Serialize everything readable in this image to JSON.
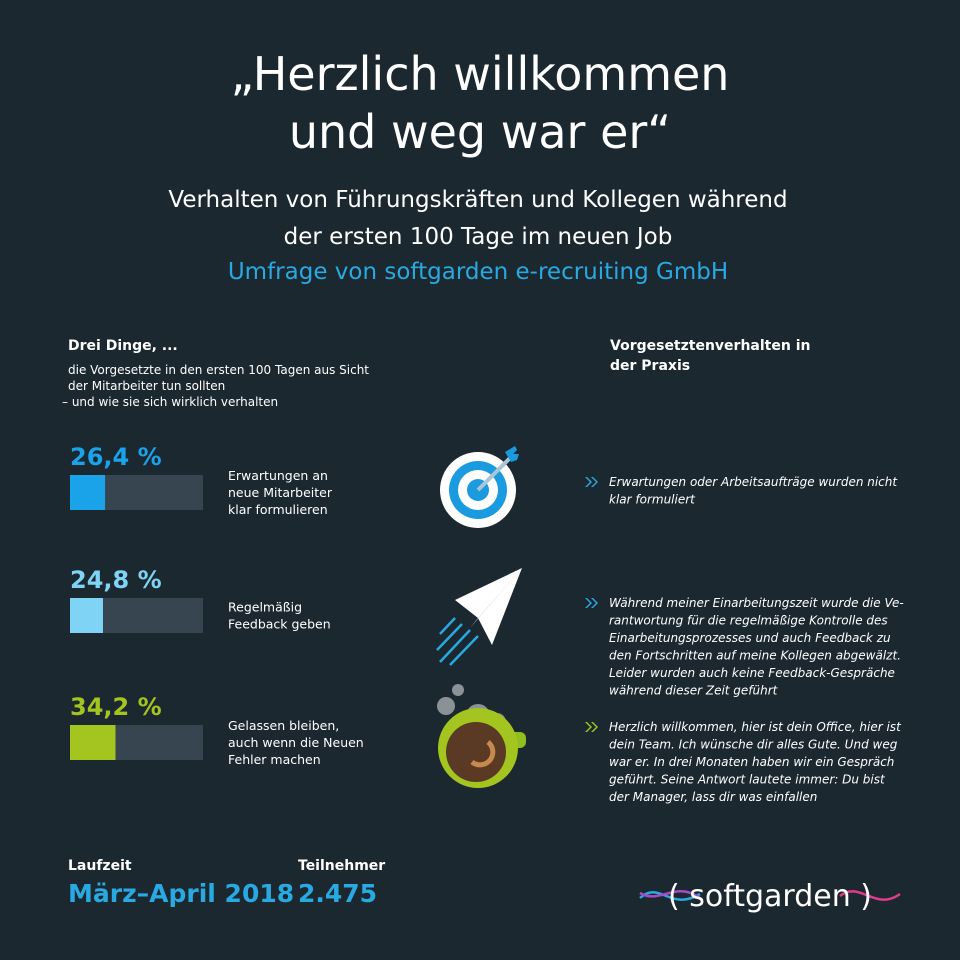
{
  "header": {
    "title_lines": [
      "„Herzlich willkommen",
      "und weg war er“"
    ],
    "subtitle_lines": [
      "Verhalten von Führungskräften und Kollegen während",
      "der ersten 100 Tage im neuen Job"
    ],
    "source": "Umfrage von softgarden e-recruiting GmbH"
  },
  "left": {
    "heading": "Drei Dinge, ...",
    "intro_lines": [
      "die Vorgesetzte in den ersten 100 Tagen aus Sicht",
      "der Mitarbeiter tun sollten",
      "– und wie sie sich wirklich verhalten"
    ]
  },
  "right": {
    "heading_lines": [
      "Vorgesetztenverhalten in",
      "der Praxis"
    ]
  },
  "items": [
    {
      "value": 26.4,
      "value_label": "26,4 %",
      "color": "#1aa3e8",
      "label_lines": [
        "Erwartungen an",
        "neue Mitarbeiter",
        "klar formulieren"
      ],
      "quote_lines": [
        "Erwartungen oder Arbeitsaufträge wurden nicht",
        "klar formuliert"
      ]
    },
    {
      "value": 24.8,
      "value_label": "24,8 %",
      "color": "#7fd3f5",
      "label_lines": [
        "Regelmäßig",
        "Feedback geben"
      ],
      "quote_lines": [
        "Während meiner Einarbeitungszeit wurde die Ve-",
        "rantwortung für die regelmäßige Kontrolle des",
        "Einarbeitungsprozesses und auch Feedback zu",
        "den Fortschritten auf meine Kollegen abgewälzt.",
        "Leider wurden auch keine Feedback-Gespräche",
        "während dieser Zeit geführt"
      ]
    },
    {
      "value": 34.2,
      "value_label": "34,2 %",
      "color": "#a4c41f",
      "label_lines": [
        "Gelassen bleiben,",
        "auch wenn die Neuen",
        "Fehler machen"
      ],
      "quote_lines": [
        "Herzlich willkommen, hier ist dein Office, hier ist",
        "dein Team. Ich wünsche dir alles Gute. Und weg",
        "war er. In drei Monaten haben wir ein Gespräch",
        "geführt. Seine Antwort lautete immer: Du bist",
        "der Manager, lass dir was einfallen"
      ]
    }
  ],
  "footer": {
    "period_label": "Laufzeit",
    "period": "März–April 2018",
    "participants_label": "Teilnehmer",
    "participants": "2.475"
  },
  "logo": "( softgarden )"
}
